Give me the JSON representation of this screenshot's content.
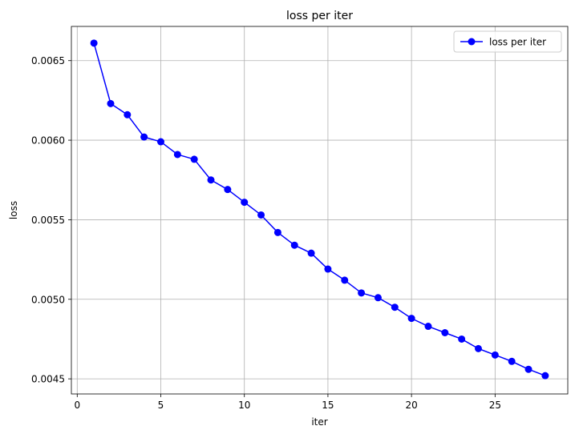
{
  "chart_data": {
    "type": "line",
    "title": "loss per iter",
    "xlabel": "iter",
    "ylabel": "loss",
    "xlim": [
      -0.35,
      29.35
    ],
    "ylim": [
      0.004405,
      0.006715
    ],
    "xticks": [
      0,
      5,
      10,
      15,
      20,
      25
    ],
    "xtick_labels": [
      "0",
      "5",
      "10",
      "15",
      "20",
      "25"
    ],
    "yticks": [
      0.0045,
      0.005,
      0.0055,
      0.006,
      0.0065
    ],
    "ytick_labels": [
      "0.0045",
      "0.0050",
      "0.0055",
      "0.0060",
      "0.0065"
    ],
    "grid": true,
    "legend_position": "upper right",
    "series": [
      {
        "name": "loss per iter",
        "color": "#0000ff",
        "marker": "circle",
        "x": [
          1,
          2,
          3,
          4,
          5,
          6,
          7,
          8,
          9,
          10,
          11,
          12,
          13,
          14,
          15,
          16,
          17,
          18,
          19,
          20,
          21,
          22,
          23,
          24,
          25,
          26,
          27,
          28
        ],
        "y": [
          0.00661,
          0.00623,
          0.00616,
          0.00602,
          0.00599,
          0.00591,
          0.00588,
          0.00575,
          0.00569,
          0.00561,
          0.00553,
          0.00542,
          0.00534,
          0.00529,
          0.00519,
          0.00512,
          0.00504,
          0.00501,
          0.00495,
          0.00488,
          0.00483,
          0.00479,
          0.00475,
          0.00469,
          0.00465,
          0.00461,
          0.00456,
          0.00452
        ]
      }
    ]
  }
}
